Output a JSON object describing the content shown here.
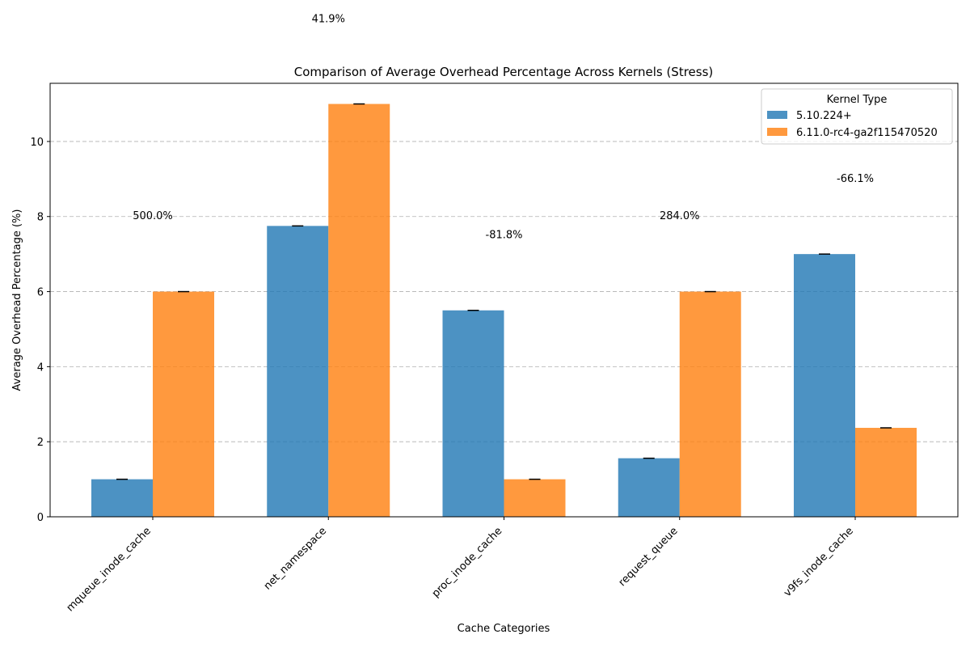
{
  "chart_data": {
    "type": "bar",
    "title": "Comparison of Average Overhead Percentage Across Kernels (Stress)",
    "xlabel": "Cache Categories",
    "ylabel": "Average Overhead Percentage (%)",
    "ylim": [
      0,
      11.55
    ],
    "yticks": [
      0,
      2,
      4,
      6,
      8,
      10
    ],
    "grid": "y-dashed",
    "legend": {
      "title": "Kernel Type",
      "placement": "top-right"
    },
    "categories": [
      "mqueue_inode_cache",
      "net_namespace",
      "proc_inode_cache",
      "request_queue",
      "v9fs_inode_cache"
    ],
    "series": [
      {
        "name": "5.10.224+",
        "color": "#1f77b4",
        "values": [
          1.0,
          7.75,
          5.5,
          1.56,
          7.0
        ]
      },
      {
        "name": "6.11.0-rc4-ga2f115470520",
        "color": "#ff7f0e",
        "values": [
          6.0,
          11.0,
          1.0,
          6.0,
          2.37
        ]
      }
    ],
    "annotations": [
      {
        "text": "500.0%",
        "category": "mqueue_inode_cache",
        "y": 8.0
      },
      {
        "text": "41.9%",
        "category": "net_namespace",
        "y": 13.25
      },
      {
        "text": "-81.8%",
        "category": "proc_inode_cache",
        "y": 7.5
      },
      {
        "text": "284.0%",
        "category": "request_queue",
        "y": 8.0
      },
      {
        "text": "-66.1%",
        "category": "v9fs_inode_cache",
        "y": 9.0
      }
    ]
  }
}
